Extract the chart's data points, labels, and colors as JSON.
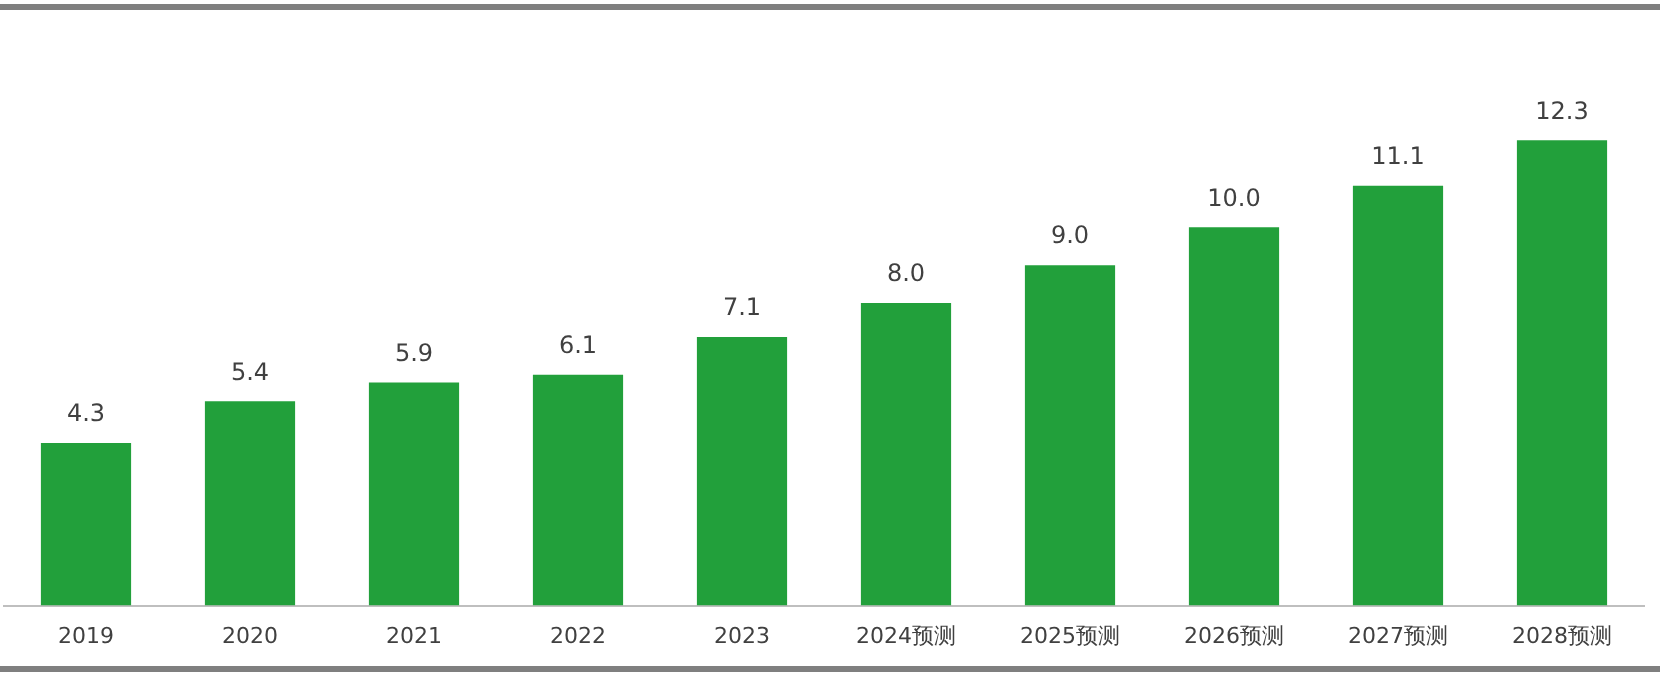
{
  "chart_data": {
    "type": "bar",
    "categories": [
      "2019",
      "2020",
      "2021",
      "2022",
      "2023",
      "2024预测",
      "2025预测",
      "2026预测",
      "2027预测",
      "2028预测"
    ],
    "values": [
      4.3,
      5.4,
      5.9,
      6.1,
      7.1,
      8.0,
      9.0,
      10.0,
      11.1,
      12.3
    ],
    "value_labels": [
      "4.3",
      "5.4",
      "5.9",
      "6.1",
      "7.1",
      "8.0",
      "9.0",
      "10.0",
      "11.1",
      "12.3"
    ],
    "color": "#22a03b",
    "tick_labels": "x",
    "grid": false,
    "legend": false
  }
}
